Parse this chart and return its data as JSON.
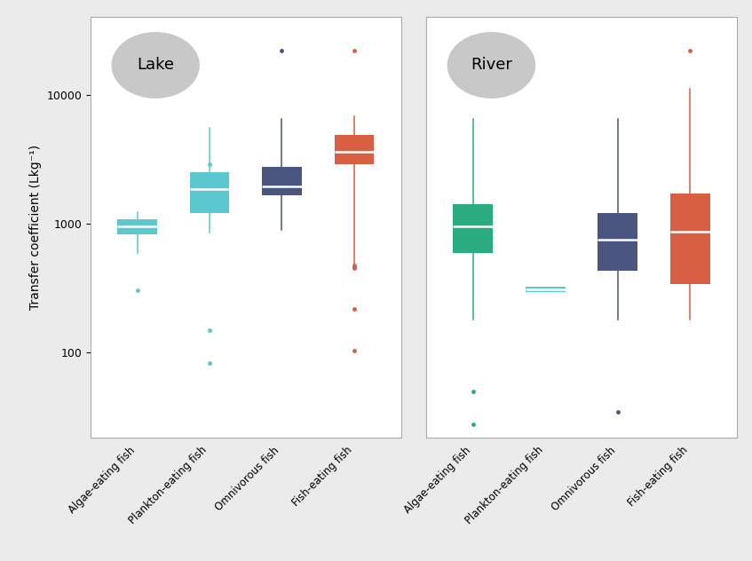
{
  "ylabel": "Transfer coefficient (Lkg⁻¹)",
  "panels": [
    "Lake",
    "River"
  ],
  "categories": [
    "Algae-eating fish",
    "Plankton-eating fish",
    "Omnivorous fish",
    "Fish-eating fish"
  ],
  "lake_colors": [
    "#5bc8d0",
    "#5bc8d0",
    "#4a5580",
    "#d95f43"
  ],
  "river_colors": [
    "#2aab80",
    "#5bc8d0",
    "#4a5580",
    "#d95f43"
  ],
  "background_color": "#ebebeb",
  "box_background": "#ffffff",
  "grid_color": "#ffffff",
  "lake_data": {
    "Algae-eating fish": {
      "q1": 830,
      "median": 960,
      "q3": 1080,
      "whislo": 590,
      "whishi": 1220,
      "fliers_low": [
        305
      ],
      "fliers_high": []
    },
    "Plankton-eating fish": {
      "q1": 1200,
      "median": 1850,
      "q3": 2500,
      "whislo": 850,
      "whishi": 5500,
      "fliers_low": [
        83,
        150
      ],
      "fliers_high": [
        2900
      ]
    },
    "Omnivorous fish": {
      "q1": 1650,
      "median": 1950,
      "q3": 2750,
      "whislo": 900,
      "whishi": 6500,
      "fliers_low": [],
      "fliers_high": [
        22000
      ]
    },
    "Fish-eating fish": {
      "q1": 2900,
      "median": 3600,
      "q3": 4900,
      "whislo": 480,
      "whishi": 6800,
      "fliers_low": [
        103,
        220,
        450,
        460,
        475
      ],
      "fliers_high": [
        22000
      ]
    }
  },
  "river_data": {
    "Algae-eating fish": {
      "q1": 590,
      "median": 950,
      "q3": 1420,
      "whislo": 180,
      "whishi": 6500,
      "fliers_low": [
        28,
        50
      ],
      "fliers_high": []
    },
    "Plankton-eating fish": {
      "q1": 295,
      "median": 310,
      "q3": 325,
      "whislo": 295,
      "whishi": 325,
      "fliers_low": [],
      "fliers_high": []
    },
    "Omnivorous fish": {
      "q1": 430,
      "median": 750,
      "q3": 1200,
      "whislo": 180,
      "whishi": 6500,
      "fliers_low": [
        35
      ],
      "fliers_high": []
    },
    "Fish-eating fish": {
      "q1": 340,
      "median": 870,
      "q3": 1700,
      "whislo": 180,
      "whishi": 11000,
      "fliers_low": [],
      "fliers_high": [
        22000
      ]
    }
  }
}
